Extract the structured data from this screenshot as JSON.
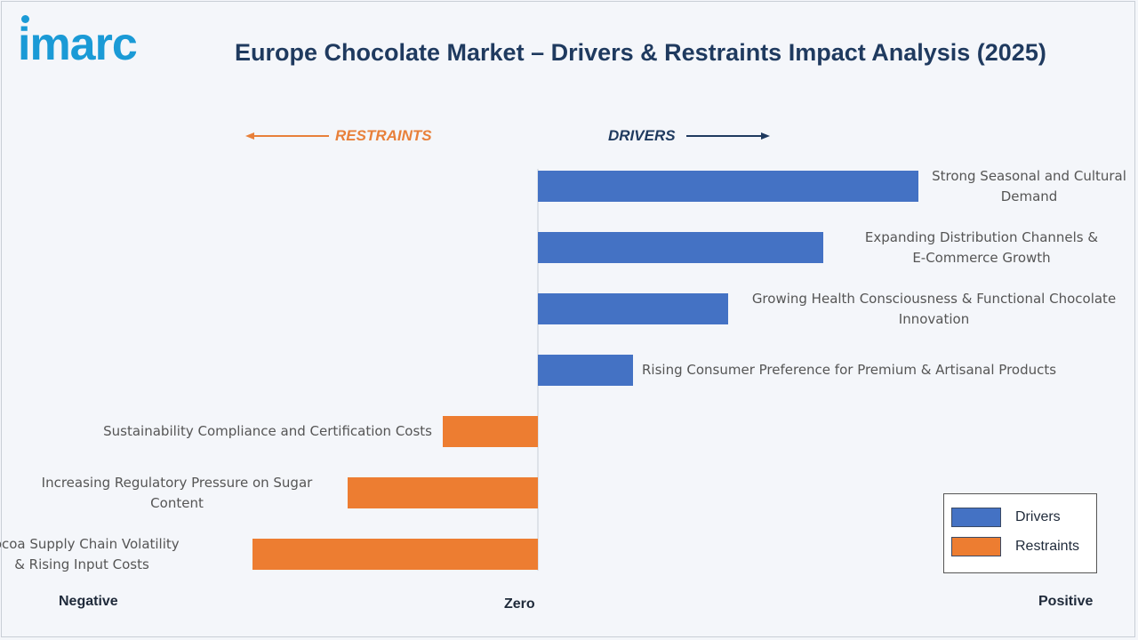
{
  "brand": {
    "logo_text": "imarc"
  },
  "header": {
    "title": "Europe Chocolate Market – Drivers & Restraints Impact Analysis (2025)"
  },
  "directions": {
    "restraints": "RESTRAINTS",
    "drivers": "DRIVERS"
  },
  "axis": {
    "negative": "Negative",
    "zero": "Zero",
    "positive": "Positive"
  },
  "legend": {
    "drivers": "Drivers",
    "restraints": "Restraints"
  },
  "colors": {
    "drivers": "#4472c4",
    "restraints": "#ed7d31",
    "arrow_restraints": "#e8803a",
    "arrow_drivers": "#1f3a5f"
  },
  "chart_data": {
    "type": "bar",
    "orientation": "horizontal",
    "title": "Europe Chocolate Market – Drivers & Restraints Impact Analysis (2025)",
    "xlabel": "",
    "ylabel": "",
    "xlim": [
      -3,
      4
    ],
    "legend_position": "bottom-right",
    "grid": false,
    "series": [
      {
        "name": "Drivers",
        "color": "#4472c4"
      },
      {
        "name": "Restraints",
        "color": "#ed7d31"
      }
    ],
    "items": [
      {
        "label": "Strong Seasonal and Cultural Demand",
        "lines": [
          "Strong Seasonal and Cultural",
          "Demand"
        ],
        "value": 4.0,
        "series": "Drivers"
      },
      {
        "label": "Expanding Distribution Channels & E-Commerce Growth",
        "lines": [
          "Expanding Distribution Channels &",
          "E-Commerce Growth"
        ],
        "value": 3.0,
        "series": "Drivers"
      },
      {
        "label": "Growing Health Consciousness & Functional Chocolate Innovation",
        "lines": [
          "Growing Health Consciousness & Functional Chocolate",
          "Innovation"
        ],
        "value": 2.0,
        "series": "Drivers"
      },
      {
        "label": "Rising Consumer Preference for Premium & Artisanal Products",
        "lines": [
          "Rising Consumer Preference for Premium & Artisanal Products"
        ],
        "value": 1.0,
        "series": "Drivers"
      },
      {
        "label": "Sustainability Compliance and Certification Costs",
        "lines": [
          "Sustainability Compliance and Certification Costs"
        ],
        "value": -1.0,
        "series": "Restraints"
      },
      {
        "label": "Increasing Regulatory Pressure on Sugar Content",
        "lines": [
          "Increasing Regulatory Pressure on Sugar",
          "Content"
        ],
        "value": -2.0,
        "series": "Restraints"
      },
      {
        "label": "Cocoa Supply Chain Volatility & Rising Input Costs",
        "lines": [
          "Cocoa Supply Chain Volatility",
          "& Rising Input Costs"
        ],
        "value": -3.0,
        "series": "Restraints"
      }
    ]
  }
}
